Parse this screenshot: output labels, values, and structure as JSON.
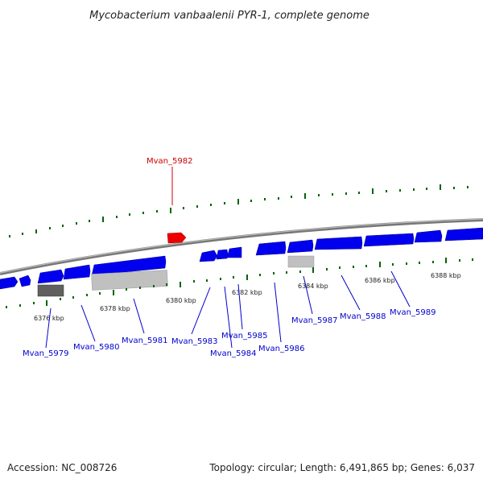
{
  "title": "Mycobacterium vanbaalenii PYR-1, complete genome",
  "footer": {
    "accession": "Accession: NC_008726",
    "topology": "Topology: circular; Length: 6,491,865 bp; Genes: 6,037"
  },
  "colors": {
    "forward_gene": "#0000ee",
    "highlight_gene": "#ee0000",
    "rna_gene": "#c0c0c0",
    "pseudo_gene": "#606060",
    "tick": "#006400",
    "backbone": "#888888",
    "label_highlight": "#cc0000",
    "label_normal": "#0000cc"
  },
  "scale_ticks": [
    "6376 kbp",
    "6378 kbp",
    "6380 kbp",
    "6382 kbp",
    "6384 kbp",
    "6386 kbp",
    "6388 kbp"
  ],
  "gene_labels": {
    "mvan_5979": "Mvan_5979",
    "mvan_5980": "Mvan_5980",
    "mvan_5981": "Mvan_5981",
    "mvan_5982": "Mvan_5982",
    "mvan_5983": "Mvan_5983",
    "mvan_5984": "Mvan_5984",
    "mvan_5985": "Mvan_5985",
    "mvan_5986": "Mvan_5986",
    "mvan_5987": "Mvan_5987",
    "mvan_5988": "Mvan_5988",
    "mvan_5989": "Mvan_5989"
  }
}
